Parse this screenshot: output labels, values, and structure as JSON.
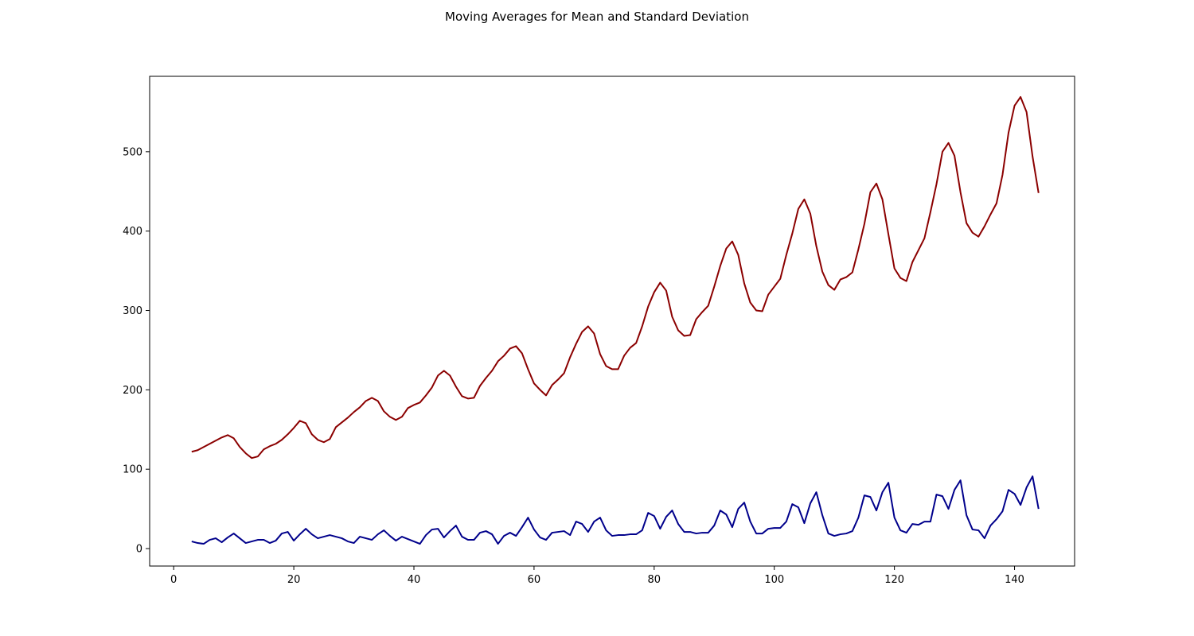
{
  "chart_data": {
    "type": "line",
    "title": "Moving Averages for Mean and Standard Deviation",
    "xlabel": "",
    "ylabel": "",
    "xlim": [
      -4,
      150
    ],
    "ylim": [
      -22,
      595
    ],
    "x_ticks": [
      0,
      20,
      40,
      60,
      80,
      100,
      120,
      140
    ],
    "y_ticks": [
      0,
      100,
      200,
      300,
      400,
      500
    ],
    "grid": false,
    "legend": "none",
    "x_start": 3,
    "series": [
      {
        "color": "#8b0000",
        "values": [
          122,
          124,
          128,
          132,
          136,
          140,
          143,
          139,
          128,
          120,
          114,
          116,
          125,
          129,
          132,
          137,
          144,
          152,
          161,
          158,
          144,
          137,
          134,
          138,
          153,
          159,
          165,
          172,
          178,
          186,
          190,
          186,
          173,
          166,
          162,
          166,
          177,
          181,
          184,
          193,
          203,
          218,
          224,
          218,
          204,
          192,
          189,
          190,
          205,
          215,
          224,
          236,
          243,
          252,
          255,
          246,
          226,
          208,
          200,
          193,
          206,
          213,
          221,
          241,
          258,
          273,
          280,
          271,
          245,
          230,
          226,
          226,
          243,
          253,
          259,
          280,
          305,
          323,
          335,
          325,
          292,
          275,
          268,
          269,
          289,
          298,
          306,
          330,
          356,
          378,
          387,
          370,
          334,
          310,
          300,
          299,
          320,
          330,
          340,
          370,
          397,
          428,
          440,
          422,
          381,
          349,
          332,
          326,
          339,
          342,
          348,
          377,
          409,
          449,
          460,
          440,
          396,
          353,
          341,
          337,
          361,
          376,
          391,
          424,
          459,
          500,
          511,
          495,
          449,
          410,
          398,
          393,
          406,
          421,
          435,
          471,
          524,
          558,
          569,
          550,
          494,
          448
        ]
      },
      {
        "color": "#00008b",
        "values": [
          9,
          7,
          6,
          11,
          13,
          8,
          14,
          19,
          13,
          7,
          9,
          11,
          11,
          7,
          10,
          19,
          21,
          10,
          18,
          25,
          18,
          13,
          15,
          17,
          15,
          13,
          9,
          7,
          15,
          13,
          11,
          18,
          23,
          16,
          10,
          15,
          12,
          9,
          6,
          17,
          24,
          25,
          14,
          22,
          29,
          15,
          11,
          11,
          20,
          22,
          18,
          6,
          16,
          20,
          16,
          27,
          39,
          24,
          14,
          11,
          20,
          21,
          22,
          17,
          34,
          31,
          21,
          34,
          39,
          23,
          16,
          17,
          17,
          18,
          18,
          23,
          45,
          41,
          25,
          40,
          48,
          31,
          21,
          21,
          19,
          20,
          20,
          29,
          48,
          43,
          27,
          50,
          58,
          34,
          19,
          19,
          25,
          26,
          26,
          34,
          56,
          52,
          32,
          57,
          71,
          42,
          19,
          16,
          18,
          19,
          22,
          39,
          67,
          65,
          48,
          71,
          83,
          39,
          23,
          20,
          31,
          30,
          34,
          34,
          68,
          66,
          50,
          74,
          86,
          42,
          24,
          23,
          13,
          29,
          37,
          47,
          74,
          69,
          55,
          77,
          91,
          50
        ]
      }
    ]
  }
}
